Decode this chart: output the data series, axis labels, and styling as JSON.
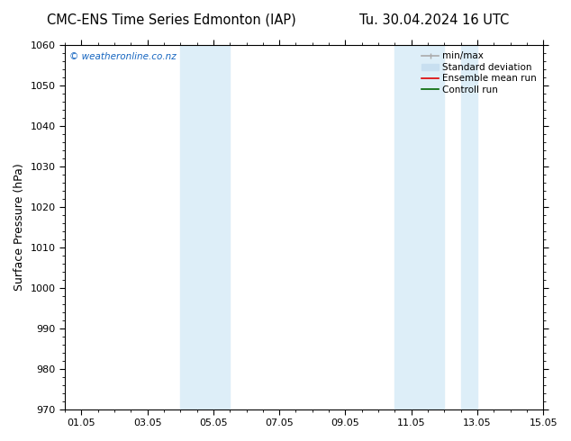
{
  "title_left": "CMC-ENS Time Series Edmonton (IAP)",
  "title_right": "Tu. 30.04.2024 16 UTC",
  "ylabel": "Surface Pressure (hPa)",
  "ylim": [
    970,
    1060
  ],
  "yticks": [
    970,
    980,
    990,
    1000,
    1010,
    1020,
    1030,
    1040,
    1050,
    1060
  ],
  "xlim_start": 0,
  "xlim_end": 14.5,
  "xtick_labels": [
    "01.05",
    "03.05",
    "05.05",
    "07.05",
    "09.05",
    "11.05",
    "13.05",
    "15.05"
  ],
  "xtick_positions": [
    0.5,
    2.5,
    4.5,
    6.5,
    8.5,
    10.5,
    12.5,
    14.5
  ],
  "shaded_regions": [
    {
      "xmin": 3.5,
      "xmax": 5.0,
      "color": "#ddeef8"
    },
    {
      "xmin": 10.0,
      "xmax": 11.5,
      "color": "#ddeef8"
    },
    {
      "xmin": 12.0,
      "xmax": 12.5,
      "color": "#ddeef8"
    }
  ],
  "watermark_text": "© weatheronline.co.nz",
  "watermark_color": "#1565c0",
  "background_color": "#ffffff",
  "plot_bg_color": "#ffffff",
  "legend_items": [
    {
      "label": "min/max",
      "color": "#aaaaaa",
      "lw": 1.2,
      "style": "line_with_caps"
    },
    {
      "label": "Standard deviation",
      "color": "#c8dff0",
      "lw": 5,
      "style": "thick"
    },
    {
      "label": "Ensemble mean run",
      "color": "#dd0000",
      "lw": 1.2,
      "style": "line"
    },
    {
      "label": "Controll run",
      "color": "#006600",
      "lw": 1.2,
      "style": "line"
    }
  ],
  "spine_color": "#000000",
  "tick_color": "#000000",
  "title_fontsize": 10.5,
  "label_fontsize": 9,
  "tick_fontsize": 8,
  "legend_fontsize": 7.5
}
